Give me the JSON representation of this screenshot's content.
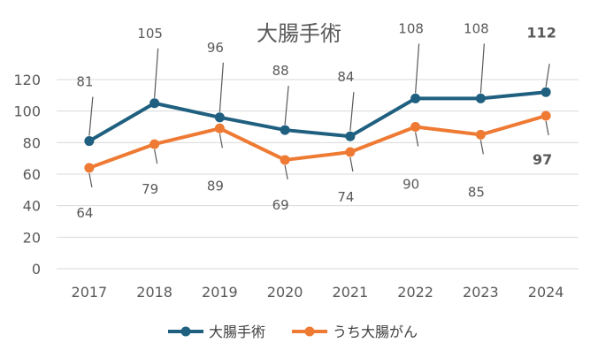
{
  "chart_data": {
    "type": "line",
    "title": "大腸手術",
    "categories": [
      "2017",
      "2018",
      "2019",
      "2020",
      "2021",
      "2022",
      "2023",
      "2024"
    ],
    "ylim": [
      0,
      120
    ],
    "yticks": [
      0,
      20,
      40,
      60,
      80,
      100,
      120
    ],
    "grid": true,
    "legend_position": "bottom",
    "series": [
      {
        "name": "大腸手術",
        "color": "#1f5f7f",
        "values": [
          81,
          105,
          96,
          88,
          84,
          108,
          108,
          112
        ],
        "label_side": "above"
      },
      {
        "name": "うち大腸がん",
        "color": "#ee7a33",
        "values": [
          64,
          79,
          89,
          69,
          74,
          90,
          85,
          97
        ],
        "label_side": "below"
      }
    ],
    "bold_labels": {
      "category": "2024"
    }
  }
}
